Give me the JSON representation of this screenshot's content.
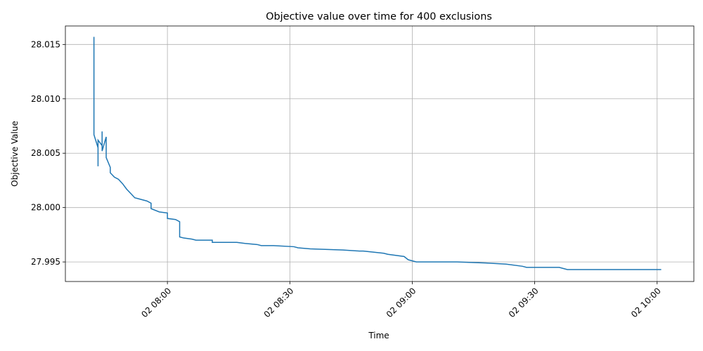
{
  "chart_data": {
    "type": "line",
    "title": "Objective value over time for 400 exclusions",
    "x_label": "Time",
    "y_label": "Objective Value",
    "x": [
      "02 07:42",
      "02 07:42",
      "02 07:42",
      "02 07:42",
      "02 07:43",
      "02 07:43",
      "02 07:43",
      "02 07:44",
      "02 07:44",
      "02 07:44",
      "02 07:45",
      "02 07:45",
      "02 07:45",
      "02 07:46",
      "02 07:46",
      "02 07:47",
      "02 07:48",
      "02 07:49",
      "02 07:50",
      "02 07:51",
      "02 07:52",
      "02 07:53",
      "02 07:55",
      "02 07:56",
      "02 07:56",
      "02 07:58",
      "02 08:00",
      "02 08:00",
      "02 08:02",
      "02 08:03",
      "02 08:03",
      "02 08:04",
      "02 08:06",
      "02 08:07",
      "02 08:11",
      "02 08:11",
      "02 08:17",
      "02 08:19",
      "02 08:22",
      "02 08:23",
      "02 08:26",
      "02 08:31",
      "02 08:32",
      "02 08:35",
      "02 08:43",
      "02 08:47",
      "02 08:48",
      "02 08:53",
      "02 08:54",
      "02 08:58",
      "02 08:59",
      "02 09:01",
      "02 09:11",
      "02 09:18",
      "02 09:23",
      "02 09:27",
      "02 09:28",
      "02 09:36",
      "02 09:38",
      "02 09:41",
      "02 10:01"
    ],
    "series": [
      {
        "name": "Objective Value",
        "color": "#1f77b4",
        "values": [
          28.0157,
          28.0088,
          28.0072,
          28.0067,
          28.0055,
          28.0038,
          28.0062,
          28.0057,
          28.007,
          28.0052,
          28.0065,
          28.0054,
          28.0046,
          28.0037,
          28.0032,
          28.0028,
          28.0026,
          28.0022,
          28.0017,
          28.0013,
          28.0009,
          28.0008,
          28.0006,
          28.0004,
          27.9999,
          27.9996,
          27.9995,
          27.999,
          27.9989,
          27.9987,
          27.9973,
          27.9972,
          27.9971,
          27.997,
          27.997,
          27.9968,
          27.9968,
          27.9967,
          27.9966,
          27.9965,
          27.9965,
          27.9964,
          27.9963,
          27.9962,
          27.9961,
          27.996,
          27.996,
          27.9958,
          27.9957,
          27.9955,
          27.9952,
          27.995,
          27.995,
          27.9949,
          27.9948,
          27.9946,
          27.9945,
          27.9945,
          27.9943,
          27.9943,
          27.9943
        ]
      }
    ],
    "xlim": [
      "02 07:35",
      "02 10:09"
    ],
    "xticks": [
      "02 08:00",
      "02 08:30",
      "02 09:00",
      "02 09:30",
      "02 10:00"
    ],
    "ylim": [
      27.9932,
      28.0167
    ],
    "yticks": [
      27.995,
      {
        "value": 28,
        "label": "28.000"
      },
      28.005,
      {
        "value": 28.01,
        "label": "28.010"
      },
      28.015
    ],
    "grid": true
  }
}
